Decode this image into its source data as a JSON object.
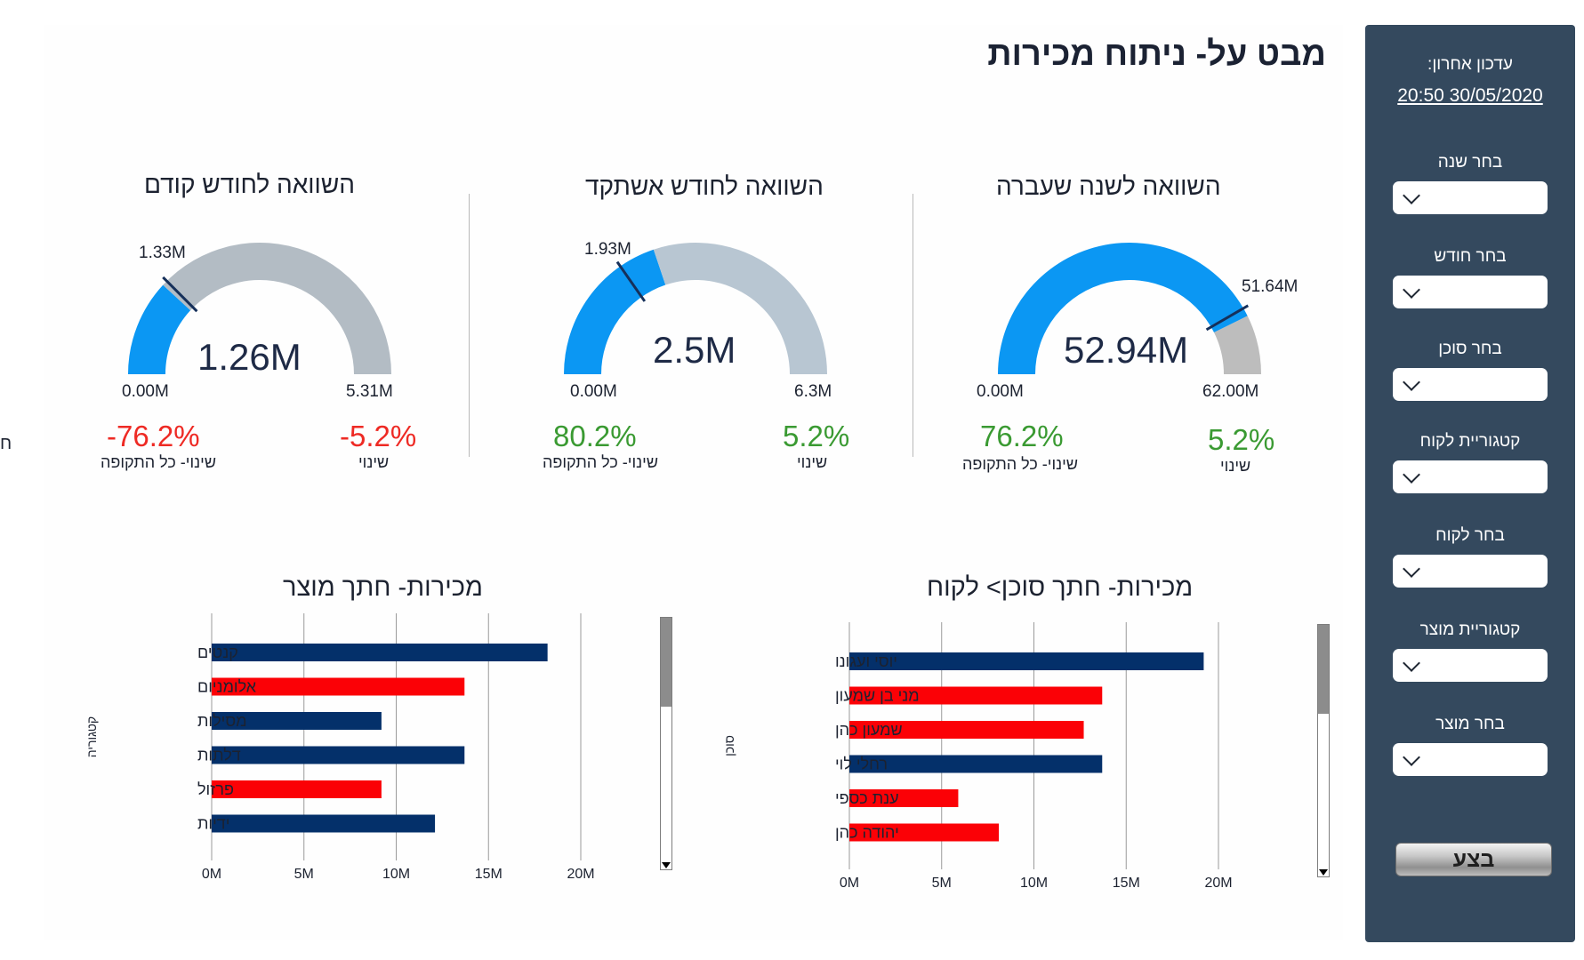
{
  "title": "מבט על- ניתוח מכירות",
  "sidebar": {
    "last_update_label": "עדכון אחרון:",
    "last_update_value": "20:50  30/05/2020",
    "filters": [
      {
        "label": "בחר שנה",
        "value": ""
      },
      {
        "label": "בחר חודש",
        "value": ""
      },
      {
        "label": "בחר סוכן",
        "value": ""
      },
      {
        "label": "קטגוריית לקוח",
        "value": ""
      },
      {
        "label": "בחר לקוח",
        "value": ""
      },
      {
        "label": "קטגוריית מוצר",
        "value": ""
      },
      {
        "label": "בחר מוצר",
        "value": ""
      }
    ],
    "execute_label": "בצע"
  },
  "gauges": [
    {
      "title": "השוואה לשנה שעברה",
      "value": 52.94,
      "value_label": "52.94M",
      "min_label": "0.00M",
      "max_label": "62.00M",
      "max": 62,
      "target": 51.64,
      "target_label": "51.64M",
      "change": "5.2%",
      "change_label": "שינוי",
      "change_period": "76.2%",
      "change_period_label": "שינוי- כל התקופה",
      "trend": "up",
      "fill_color": "#0b97f3",
      "rest_color": "#bdbdbd"
    },
    {
      "title": "השוואה לחודש אשתקד",
      "value": 2.5,
      "value_label": "2.5M",
      "min_label": "0.00M",
      "max_label": "6.3M",
      "max": 6.3,
      "target": 1.93,
      "target_label": "1.93M",
      "change": "5.2%",
      "change_label": "שינוי",
      "change_period": "80.2%",
      "change_period_label": "שינוי- כל התקופה",
      "trend": "up",
      "fill_color": "#0b97f3",
      "rest_color": "#b8c6d2"
    },
    {
      "title": "השוואה לחודש קודם",
      "value": 1.26,
      "value_label": "1.26M",
      "min_label": "0.00M",
      "max_label": "5.31M",
      "max": 5.31,
      "target": 1.33,
      "target_label": "1.33M",
      "change": "-5.2%",
      "change_label": "שינוי",
      "change_period": "-76.2%",
      "change_period_label": "שינוי- כל התקופה",
      "trend": "down",
      "fill_color": "#0b97f3",
      "rest_color": "#b3bcc4"
    }
  ],
  "chart_data": [
    {
      "type": "bar",
      "title": "מכירות- חתך סוכן> לקוח",
      "ylabel": "סוכן",
      "categories": [
        "יוסי ועגונו",
        "מני בן שמעון",
        "שמעון כהן",
        "רחלי לוי",
        "ענת כספי",
        "יהודה כהן"
      ],
      "values": [
        19.2,
        13.7,
        12.7,
        13.7,
        5.9,
        8.1
      ],
      "bar_colors": [
        "#04306a",
        "#fb0106",
        "#fb0106",
        "#04306a",
        "#fb0106",
        "#fb0106"
      ],
      "xlim": [
        0,
        20
      ],
      "xticks": [
        "0M",
        "5M",
        "10M",
        "15M",
        "20M"
      ],
      "grid": true
    },
    {
      "type": "bar",
      "title": "מכירות- חתך מוצר",
      "ylabel": "קטגוריה",
      "categories": [
        "קנטים",
        "אלומניום",
        "מסילות",
        "דלתות",
        "פרזול",
        "ידיות"
      ],
      "values": [
        18.2,
        13.7,
        9.2,
        13.7,
        9.2,
        12.1
      ],
      "bar_colors": [
        "#04306a",
        "#fb0106",
        "#04306a",
        "#04306a",
        "#fb0106",
        "#04306a"
      ],
      "xlim": [
        0,
        20
      ],
      "xticks": [
        "0M",
        "5M",
        "10M",
        "15M",
        "20M"
      ],
      "grid": true
    }
  ]
}
